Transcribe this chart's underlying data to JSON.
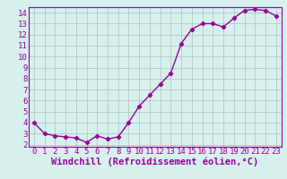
{
  "x": [
    0,
    1,
    2,
    3,
    4,
    5,
    6,
    7,
    8,
    9,
    10,
    11,
    12,
    13,
    14,
    15,
    16,
    17,
    18,
    19,
    20,
    21,
    22,
    23
  ],
  "y": [
    4.0,
    3.0,
    2.8,
    2.7,
    2.6,
    2.2,
    2.8,
    2.5,
    2.7,
    4.0,
    5.5,
    6.5,
    7.5,
    8.5,
    11.2,
    12.5,
    13.0,
    13.0,
    12.7,
    13.5,
    14.2,
    14.3,
    14.2,
    13.7
  ],
  "line_color": "#990099",
  "marker": "D",
  "marker_size": 2.2,
  "background_color": "#d6f0ee",
  "grid_color": "#b0c8c8",
  "xlabel": "Windchill (Refroidissement éolien,°C)",
  "ylim_min": 1.8,
  "ylim_max": 14.5,
  "xlim_min": -0.5,
  "xlim_max": 23.5,
  "yticks": [
    2,
    3,
    4,
    5,
    6,
    7,
    8,
    9,
    10,
    11,
    12,
    13,
    14
  ],
  "xticks": [
    0,
    1,
    2,
    3,
    4,
    5,
    6,
    7,
    8,
    9,
    10,
    11,
    12,
    13,
    14,
    15,
    16,
    17,
    18,
    19,
    20,
    21,
    22,
    23
  ],
  "tick_color": "#990099",
  "label_color": "#990099",
  "font_size": 6.5,
  "xlabel_font_size": 7.5,
  "linewidth": 1.0
}
